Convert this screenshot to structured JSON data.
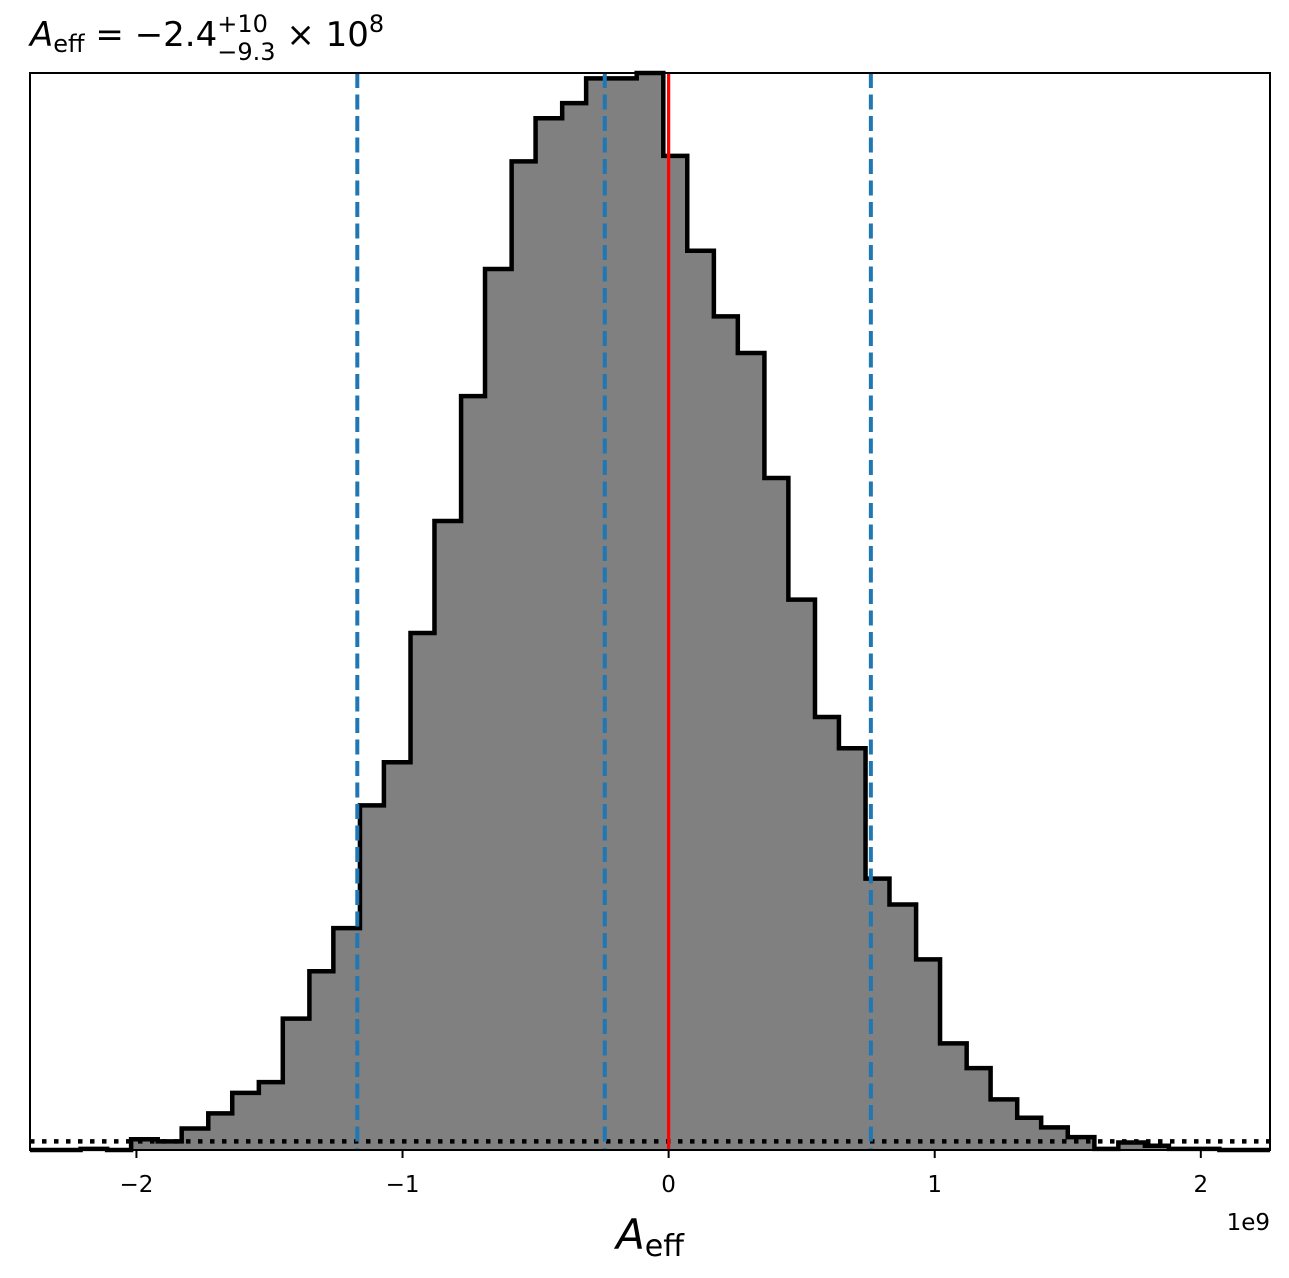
{
  "chart_data": {
    "type": "bar",
    "title": {
      "symbol": "A",
      "symbol_sub": "eff",
      "equals": " = ",
      "value": "−2.4",
      "err_plus": "+10",
      "err_minus": "−9.3",
      "times": " × 10",
      "exponent": "8"
    },
    "xlabel": {
      "symbol": "A",
      "sub": "eff"
    },
    "offset_text": "1e9",
    "xlim": [
      -2.4,
      2.26
    ],
    "ylim": [
      0,
      1.0
    ],
    "ticks": [
      {
        "value": -2,
        "label": "−2"
      },
      {
        "value": -1,
        "label": "−1"
      },
      {
        "value": 0,
        "label": "0"
      },
      {
        "value": 1,
        "label": "1"
      },
      {
        "value": 2,
        "label": "2"
      }
    ],
    "bin_edges": [
      -2.4,
      -2.31,
      -2.21,
      -2.11,
      -2.02,
      -1.92,
      -1.83,
      -1.73,
      -1.64,
      -1.54,
      -1.45,
      -1.35,
      -1.26,
      -1.16,
      -1.07,
      -0.97,
      -0.88,
      -0.78,
      -0.69,
      -0.59,
      -0.5,
      -0.4,
      -0.31,
      -0.21,
      -0.12,
      -0.02,
      0.07,
      0.17,
      0.26,
      0.36,
      0.45,
      0.55,
      0.64,
      0.74,
      0.83,
      0.93,
      1.02,
      1.12,
      1.21,
      1.31,
      1.4,
      1.5,
      1.6,
      1.69,
      1.79,
      1.88,
      1.98,
      2.07,
      2.17,
      2.26
    ],
    "bin_values": [
      0.0,
      0.0,
      0.001,
      0.0,
      0.01,
      0.008,
      0.02,
      0.034,
      0.053,
      0.063,
      0.122,
      0.166,
      0.206,
      0.32,
      0.36,
      0.48,
      0.584,
      0.7,
      0.818,
      0.918,
      0.958,
      0.972,
      0.995,
      0.995,
      1.0,
      0.923,
      0.835,
      0.774,
      0.74,
      0.624,
      0.511,
      0.402,
      0.373,
      0.252,
      0.228,
      0.177,
      0.099,
      0.076,
      0.047,
      0.03,
      0.021,
      0.012,
      0.001,
      0.007,
      0.004,
      0.001,
      0.001,
      0.0,
      0.0
    ],
    "reference_lines": {
      "truth": {
        "x": 0.0,
        "color": "#ff0000",
        "style": "solid"
      },
      "quantiles": {
        "x": [
          -1.17,
          -0.24,
          0.76
        ],
        "color": "#1f77b4",
        "style": "dashed"
      },
      "baseline": {
        "y": 0.008,
        "color": "#000000",
        "style": "dotted"
      }
    },
    "fill_color": "#808080",
    "edge_color": "#000000",
    "grid": false
  }
}
